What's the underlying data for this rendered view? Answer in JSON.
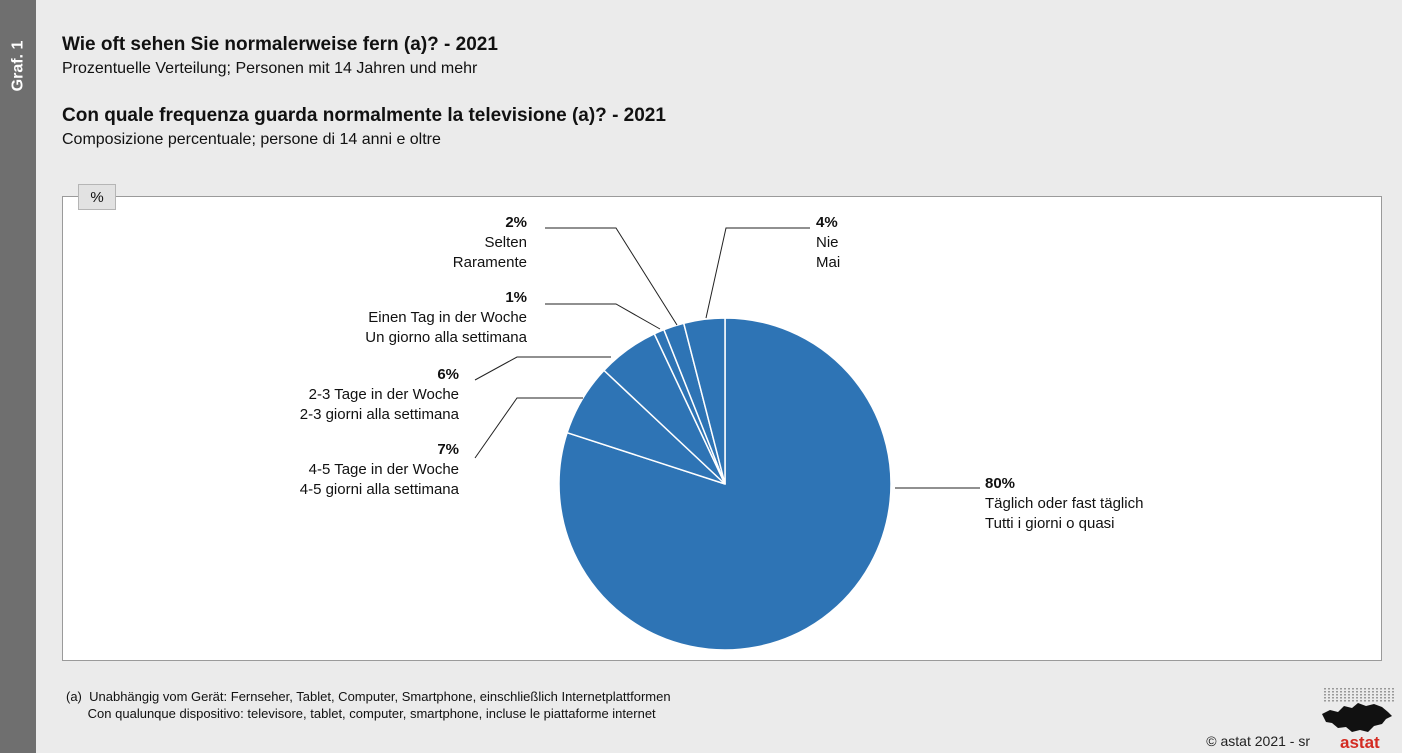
{
  "sidebar": {
    "label": "Graf. 1"
  },
  "header": {
    "title_de": "Wie oft sehen Sie normalerweise fern (a)? - 2021",
    "subtitle_de": "Prozentuelle Verteilung; Personen mit 14 Jahren und mehr",
    "title_it": "Con quale frequenza guarda normalmente la televisione (a)? - 2021",
    "subtitle_it": "Composizione percentuale; persone di 14 anni e oltre"
  },
  "unit_label": "%",
  "chart_data": {
    "type": "pie",
    "color": "#2e74b5",
    "slices": [
      {
        "value": 80,
        "pct_label": "80%",
        "label_de": "Täglich oder fast täglich",
        "label_it": "Tutti i giorni o quasi"
      },
      {
        "value": 7,
        "pct_label": "7%",
        "label_de": "4-5 Tage in der Woche",
        "label_it": "4-5 giorni alla settimana"
      },
      {
        "value": 6,
        "pct_label": "6%",
        "label_de": "2-3 Tage in der Woche",
        "label_it": "2-3 giorni alla settimana"
      },
      {
        "value": 1,
        "pct_label": "1%",
        "label_de": "Einen Tag in der Woche",
        "label_it": "Un giorno alla settimana"
      },
      {
        "value": 2,
        "pct_label": "2%",
        "label_de": "Selten",
        "label_it": "Raramente"
      },
      {
        "value": 4,
        "pct_label": "4%",
        "label_de": "Nie",
        "label_it": "Mai"
      }
    ]
  },
  "footnote": {
    "line1": "(a)  Unabhängig vom Gerät: Fernseher, Tablet, Computer, Smartphone, einschließlich Internetplattformen",
    "line2": "      Con qualunque dispositivo: televisore, tablet, computer, smartphone, incluse le piattaforme internet"
  },
  "copyright": "© astat 2021 - sr",
  "logo_text": "astat"
}
